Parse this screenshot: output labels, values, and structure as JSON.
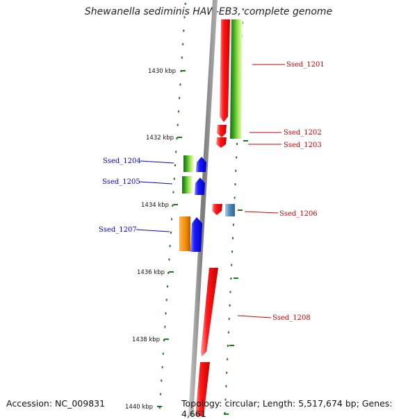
{
  "title": "Shewanella sediminis HAW-EB3, complete genome",
  "footer": {
    "accession": "Accession: NC_009831",
    "summary": "Topology: circular; Length: 5,517,674 bp; Genes: 4,661"
  },
  "ruler": {
    "labels": [
      "1430 kbp",
      "1432 kbp",
      "1434 kbp",
      "1436 kbp",
      "1438 kbp",
      "1440 kbp"
    ]
  },
  "genes": {
    "right": [
      "Ssed_1201",
      "Ssed_1202",
      "Ssed_1203",
      "Ssed_1206",
      "Ssed_1208"
    ],
    "left": [
      "Ssed_1204",
      "Ssed_1205",
      "Ssed_1207"
    ]
  },
  "colors": {
    "forward_label": "#cc0000",
    "reverse_label": "#0000cc",
    "forward_gene": "#ff0000",
    "reverse_gene": "#0000ff",
    "tick": "#1a7a1a",
    "backbone": "#8a8a8a"
  }
}
